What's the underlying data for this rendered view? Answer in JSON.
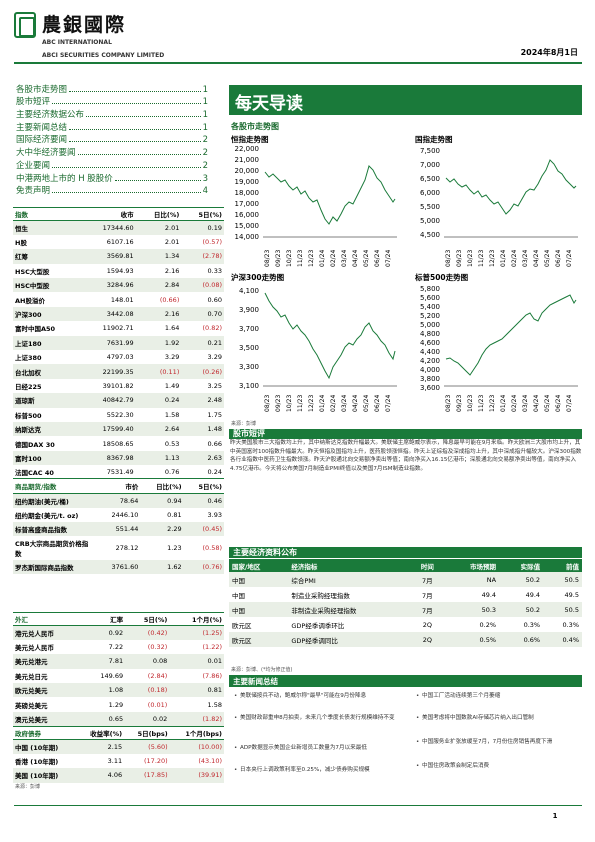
{
  "header": {
    "logo_cn": "農銀國際",
    "logo_en1": "ABC INTERNATIONAL",
    "logo_en2": "ABCI SECURITIES COMPANY LIMITED",
    "date": "2024年8月1日"
  },
  "toc": [
    {
      "label": "各股市走势图",
      "page": "1"
    },
    {
      "label": "股市短评",
      "page": "1"
    },
    {
      "label": "主要经济数据公布",
      "page": "1"
    },
    {
      "label": "主要新闻总结",
      "page": "1"
    },
    {
      "label": "国际经济要闻",
      "page": "2"
    },
    {
      "label": "大中华经济要闻",
      "page": "2"
    },
    {
      "label": "企业要闻",
      "page": "2"
    },
    {
      "label": "中港两地上市的 H 股股价",
      "page": "3"
    },
    {
      "label": "免责声明",
      "page": "4"
    }
  ],
  "banner_title": "每天导读",
  "index_section_title": "各股市走势图",
  "charts": [
    {
      "title": "恒指走势图",
      "yticks": [
        "22,000",
        "21,000",
        "20,000",
        "19,000",
        "18,000",
        "17,000",
        "16,000",
        "15,000",
        "14,000"
      ],
      "xticks": [
        "08/23",
        "09/23",
        "10/23",
        "11/23",
        "12/23",
        "01/24",
        "02/24",
        "03/24",
        "04/24",
        "05/24",
        "06/24",
        "07/24"
      ]
    },
    {
      "title": "国指走势图",
      "yticks": [
        "7,500",
        "7,000",
        "6,500",
        "6,000",
        "5,500",
        "5,000",
        "4,500"
      ],
      "xticks": [
        "08/23",
        "09/23",
        "10/23",
        "11/23",
        "12/23",
        "01/24",
        "02/24",
        "03/24",
        "04/24",
        "05/24",
        "06/24",
        "07/24"
      ]
    },
    {
      "title": "沪深300走势图",
      "yticks": [
        "4,100",
        "3,900",
        "3,700",
        "3,500",
        "3,300",
        "3,100"
      ],
      "xticks": [
        "08/23",
        "09/23",
        "10/23",
        "11/23",
        "12/23",
        "01/24",
        "02/24",
        "03/24",
        "04/24",
        "05/24",
        "06/24",
        "07/24"
      ]
    },
    {
      "title": "标普500走势图",
      "yticks": [
        "5,800",
        "5,600",
        "5,400",
        "5,200",
        "5,000",
        "4,800",
        "4,600",
        "4,400",
        "4,200",
        "4,000",
        "3,800",
        "3,600"
      ],
      "xticks": [
        "08/23",
        "09/23",
        "10/23",
        "11/23",
        "12/23",
        "01/24",
        "02/24",
        "03/24",
        "04/24",
        "05/24",
        "06/24",
        "07/24"
      ]
    }
  ],
  "chart_source": "来源：彭博",
  "indices_table": {
    "headers": [
      "指数",
      "收市",
      "日比(%)",
      "5日(%)"
    ],
    "rows": [
      [
        "恒生",
        "17344.60",
        "2.01",
        "0.19"
      ],
      [
        "H股",
        "6107.16",
        "2.01",
        "(0.57)"
      ],
      [
        "红筹",
        "3569.81",
        "1.34",
        "(2.78)"
      ],
      [
        "HSC大型股",
        "1594.93",
        "2.16",
        "0.33"
      ],
      [
        "HSC中型股",
        "3284.96",
        "2.84",
        "(0.08)"
      ],
      [
        "AH股溢价",
        "148.01",
        "(0.66)",
        "0.60"
      ],
      [
        "沪深300",
        "3442.08",
        "2.16",
        "0.70"
      ],
      [
        "富时中国A50",
        "11902.71",
        "1.64",
        "(0.82)"
      ],
      [
        "上证180",
        "7631.99",
        "1.92",
        "0.21"
      ],
      [
        "上证380",
        "4797.03",
        "3.29",
        "3.29"
      ],
      [
        "台北加权",
        "22199.35",
        "(0.11)",
        "(0.26)"
      ],
      [
        "日经225",
        "39101.82",
        "1.49",
        "3.25"
      ],
      [
        "道琼斯",
        "40842.79",
        "0.24",
        "2.48"
      ],
      [
        "标普500",
        "5522.30",
        "1.58",
        "1.75"
      ],
      [
        "纳斯达克",
        "17599.40",
        "2.64",
        "1.48"
      ],
      [
        "德国DAX 30",
        "18508.65",
        "0.53",
        "0.66"
      ],
      [
        "富时100",
        "8367.98",
        "1.13",
        "2.63"
      ],
      [
        "法国CAC 40",
        "7531.49",
        "0.76",
        "0.24"
      ]
    ]
  },
  "commodity_table": {
    "headers": [
      "商品期货/指数",
      "市价",
      "日比(%)",
      "5日(%)"
    ],
    "rows": [
      [
        "纽约期油(美元/桶)",
        "78.64",
        "0.94",
        "0.46"
      ],
      [
        "纽约期金(美元/t. oz)",
        "2446.10",
        "0.81",
        "3.93"
      ],
      [
        "标普高盛商品指数",
        "551.44",
        "2.29",
        "(0.45)"
      ],
      [
        "CRB大宗商品期货价格指数",
        "278.12",
        "1.23",
        "(0.58)"
      ],
      [
        "罗杰斯国际商品指数",
        "3761.60",
        "1.62",
        "(0.76)"
      ]
    ]
  },
  "fx_table": {
    "headers": [
      "外汇",
      "汇率",
      "5日(%)",
      "1个月(%)"
    ],
    "rows": [
      [
        "港元兑人民币",
        "0.92",
        "(0.42)",
        "(1.25)"
      ],
      [
        "美元兑人民币",
        "7.22",
        "(0.32)",
        "(1.22)"
      ],
      [
        "美元兑港元",
        "7.81",
        "0.08",
        "0.01"
      ],
      [
        "美元兑日元",
        "149.69",
        "(2.84)",
        "(7.86)"
      ],
      [
        "欧元兑美元",
        "1.08",
        "(0.18)",
        "0.81"
      ],
      [
        "英磅兑美元",
        "1.29",
        "(0.01)",
        "1.58"
      ],
      [
        "澳元兑美元",
        "0.65",
        "0.02",
        "(1.82)"
      ]
    ]
  },
  "bond_table": {
    "headers": [
      "政府债券",
      "收益率(%)",
      "5日(bps)",
      "1个月(bps)"
    ],
    "rows": [
      [
        "中国 (10年期)",
        "2.15",
        "(5.60)",
        "(10.00)"
      ],
      [
        "香港 (10年期)",
        "3.11",
        "(17.20)",
        "(43.10)"
      ],
      [
        "美国 (10年期)",
        "4.06",
        "(17.85)",
        "(39.91)"
      ]
    ]
  },
  "table_source": "来源：彭博",
  "commentary_title": "股市短评",
  "commentary": "昨天美国股市三大指数均上升，其中纳斯达克指数升幅最大。美联储主席鲍威尔表示，降息最早可能在9月来临。昨天欧洲三大股市均上升，其中英国富时100指数升幅最大。昨天恒指及国指均上升，医药股领涨恒指。昨天上证综指及深成指均上升，其中深成指升幅较大。沪深300指数各行业指数中医药卫生指数领涨。昨天沪股通北向交易额净卖出等值；南向净买入16.15亿港币；深股通北向交易额净卖出等值，南向净买入4.75亿港币。今天将公布美国7月制造业PMI终值以及美国7月ISM制造业指数。",
  "eco_title": "主要经济资料公布",
  "eco_table": {
    "headers": [
      "国家/地区",
      "经济指标",
      "时间",
      "市场预期",
      "实际值",
      "前值"
    ],
    "rows": [
      [
        "中国",
        "综合PMI",
        "7月",
        "NA",
        "50.2",
        "50.5"
      ],
      [
        "中国",
        "制造业采购经理指数",
        "7月",
        "49.4",
        "49.4",
        "49.5"
      ],
      [
        "中国",
        "非制造业采购经理指数",
        "7月",
        "50.3",
        "50.2",
        "50.5"
      ],
      [
        "欧元区",
        "GDP经季调季环比",
        "2Q",
        "0.2%",
        "0.3%",
        "0.3%"
      ],
      [
        "欧元区",
        "GDP经季调同比",
        "2Q",
        "0.5%",
        "0.6%",
        "0.4%"
      ]
    ]
  },
  "eco_source": "来源：彭博、(*均为修正值)",
  "news_title": "主要新闻总结",
  "news_left": [
    "美联储按兵不动，鲍威尔称\"最早\"可能在9月份降息",
    "美国财政部重申8月拍卖，未来几个季度长债发行规模维持不变",
    "ADP数据显示美国企业新增员工数量为7月以来最低",
    "日本央行上调政策利率至0.25%，减少债券购买规模"
  ],
  "news_right": [
    "中国工厂活动连续第三个月萎缩",
    "美国考虑将中国数款AI存储芯片纳入出口管制",
    "中国服务业扩张放缓至7月，7月份住房销售再度下滑",
    "中国住房政策会制定后消费"
  ],
  "page_number": "1",
  "colors": {
    "brand_green": "#1a7a3a",
    "negative": "#c0272d",
    "row_alt": "#e9efe6"
  }
}
